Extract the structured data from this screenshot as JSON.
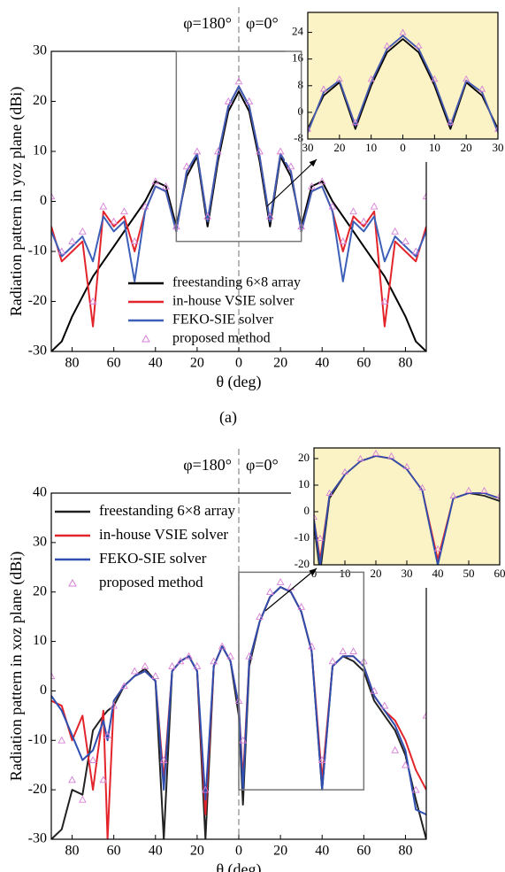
{
  "chart_data": [
    {
      "type": "line",
      "caption": "(a)",
      "xlabel": "θ (deg)",
      "ylabel": "Radiation pattern in yoz plane (dBi)",
      "annotations": [
        "φ=180°",
        "φ=0°"
      ],
      "legend": "lower center",
      "grid": false,
      "xlim": [
        -90,
        90
      ],
      "ylim": [
        -30,
        30
      ],
      "xticks": [
        {
          "value": -80,
          "label": "80"
        },
        {
          "value": -60,
          "label": "60"
        },
        {
          "value": -40,
          "label": "40"
        },
        {
          "value": -20,
          "label": "20"
        },
        0,
        20,
        40,
        60,
        80
      ],
      "yticks": [
        -30,
        -20,
        -10,
        0,
        10,
        20,
        30
      ],
      "x": [
        -90,
        -85,
        -80,
        -75,
        -70,
        -65,
        -60,
        -55,
        -50,
        -45,
        -40,
        -35,
        -30,
        -25,
        -20,
        -15,
        -10,
        -5,
        0,
        5,
        10,
        15,
        20,
        25,
        30,
        35,
        40,
        45,
        50,
        55,
        60,
        65,
        70,
        75,
        80,
        85,
        90
      ],
      "series": [
        {
          "name": "freestanding 6×8 array",
          "color": "#000000",
          "values": [
            -30,
            -28,
            -23,
            -19,
            -15,
            -12,
            -9,
            -6,
            -3,
            0,
            4,
            3,
            -5,
            5,
            9,
            -5,
            8,
            18,
            22,
            18,
            8,
            -5,
            9,
            5,
            -5,
            3,
            4,
            0,
            -3,
            -6,
            -9,
            -12,
            -15,
            -19,
            -23,
            -28,
            -30
          ]
        },
        {
          "name": "in-house VSIE solver",
          "color": "#e3242b",
          "values": [
            -5,
            -12,
            -10,
            -8,
            -25,
            -2,
            -5,
            -3,
            -10,
            -2,
            3,
            2,
            -6,
            6,
            9.5,
            -4,
            9,
            19,
            23,
            19,
            9,
            -4,
            9.5,
            6,
            -6,
            2,
            3,
            -2,
            -10,
            -3,
            -5,
            -2,
            -25,
            -8,
            -10,
            -12,
            -5
          ]
        },
        {
          "name": "FEKO-SIE solver",
          "color": "#3c5fb8",
          "values": [
            -6,
            -11,
            -9,
            -7,
            -12,
            -3,
            -6,
            -4,
            -16,
            -2,
            3,
            2,
            -6,
            6,
            9.5,
            -4,
            9,
            19,
            23,
            19,
            9,
            -4,
            9.5,
            6,
            -6,
            2,
            3,
            -2,
            -16,
            -4,
            -6,
            -3,
            -12,
            -7,
            -9,
            -11,
            -6
          ]
        },
        {
          "name": "proposed method",
          "color": "#d77fd7",
          "marker": "triangle",
          "values": [
            1,
            -10,
            -8,
            -6,
            -20,
            -1,
            -4,
            -2,
            -8,
            -1,
            4,
            3,
            -5,
            7,
            10,
            -3,
            10,
            20,
            24,
            20,
            10,
            -3,
            10,
            7,
            -5,
            3,
            4,
            -1,
            -8,
            -2,
            -4,
            -1,
            -20,
            -6,
            -8,
            -10,
            1
          ]
        }
      ]
    },
    {
      "type": "line",
      "background": "#fbf3c6",
      "grid": false,
      "xlim": [
        -30,
        30
      ],
      "ylim": [
        -8,
        30
      ],
      "xticks": [
        {
          "value": -30,
          "label": "30"
        },
        {
          "value": -20,
          "label": "20"
        },
        {
          "value": -10,
          "label": "10"
        },
        0,
        10,
        20,
        30
      ],
      "yticks": [
        -8,
        0,
        8,
        16,
        24
      ],
      "x": [
        -30,
        -25,
        -20,
        -15,
        -10,
        -5,
        0,
        5,
        10,
        15,
        20,
        25,
        30
      ],
      "series": [
        {
          "color": "#000000",
          "values": [
            -5,
            5,
            9,
            -5,
            8,
            18,
            22,
            18,
            8,
            -5,
            9,
            5,
            -5
          ]
        },
        {
          "color": "#e3242b",
          "values": [
            -6,
            6,
            9.5,
            -4,
            9,
            19,
            23,
            19,
            9,
            -4,
            9.5,
            6,
            -6
          ]
        },
        {
          "color": "#3c5fb8",
          "values": [
            -6,
            6,
            9.5,
            -4,
            9,
            19,
            23,
            19,
            9,
            -4,
            9.5,
            6,
            -6
          ]
        },
        {
          "color": "#d77fd7",
          "marker": "triangle",
          "values": [
            -5,
            7,
            10,
            -3,
            10,
            20,
            24,
            20,
            10,
            -3,
            10,
            7,
            -5
          ]
        }
      ]
    },
    {
      "type": "line",
      "caption": "(b)",
      "xlabel": "θ (deg)",
      "ylabel": "Radiation pattern in xoz plane (dBi)",
      "annotations": [
        "φ=180°",
        "φ=0°"
      ],
      "legend": "upper left",
      "grid": false,
      "xlim": [
        -90,
        90
      ],
      "ylim": [
        -30,
        40
      ],
      "xticks": [
        {
          "value": -80,
          "label": "80"
        },
        {
          "value": -60,
          "label": "60"
        },
        {
          "value": -40,
          "label": "40"
        },
        {
          "value": -20,
          "label": "20"
        },
        0,
        20,
        40,
        60,
        80
      ],
      "yticks": [
        -30,
        -20,
        -10,
        0,
        10,
        20,
        30,
        40
      ],
      "x": [
        -90,
        -85,
        -80,
        -75,
        -70,
        -65,
        -63,
        -60,
        -55,
        -50,
        -45,
        -40,
        -36,
        -32,
        -28,
        -24,
        -20,
        -16,
        -12,
        -8,
        -4,
        0,
        2,
        5,
        10,
        15,
        20,
        25,
        30,
        35,
        40,
        45,
        50,
        55,
        60,
        65,
        70,
        75,
        80,
        85,
        90
      ],
      "series": [
        {
          "name": "freestanding 6×8 array",
          "color": "#222222",
          "values": [
            -30,
            -28,
            -20,
            -21,
            -8,
            -5,
            -4,
            -3,
            1,
            3,
            4.5,
            2,
            -30,
            4,
            6,
            7,
            4,
            -30,
            5,
            9,
            6,
            -5,
            -23,
            5,
            14,
            19,
            21,
            20,
            16,
            8,
            -20,
            5,
            7,
            6,
            4,
            -2,
            -5,
            -8,
            -13,
            -22,
            -30
          ]
        },
        {
          "name": "in-house VSIE solver",
          "color": "#e3242b",
          "values": [
            -2,
            -3,
            -10,
            -5,
            -20,
            -4,
            -30,
            -2,
            1,
            3,
            4,
            2,
            -18,
            4,
            6,
            7,
            4,
            -25,
            5,
            9,
            6,
            -3,
            -18,
            6,
            14,
            19,
            21,
            20,
            16,
            8,
            -18,
            5,
            7,
            7,
            5,
            -1,
            -4,
            -6,
            -10,
            -16,
            -20
          ]
        },
        {
          "name": "FEKO-SIE solver",
          "color": "#2f4fb0",
          "values": [
            -1,
            -4,
            -9,
            -14,
            -12,
            -6,
            -10,
            -2,
            1,
            3,
            4,
            2,
            -20,
            4,
            6,
            7,
            4,
            -22,
            5,
            9,
            6,
            -3,
            -20,
            6,
            14,
            19,
            21,
            20,
            16,
            8,
            -20,
            5,
            7,
            7,
            5,
            -1,
            -4,
            -7,
            -12,
            -24,
            -25
          ]
        },
        {
          "name": "proposed method",
          "color": "#d77fd7",
          "marker": "triangle",
          "values": [
            3,
            -10,
            -18,
            -22,
            -14,
            -18,
            -9,
            -3,
            1,
            4,
            5,
            3,
            -14,
            5,
            6,
            7,
            5,
            -20,
            6,
            9,
            7,
            -2,
            -10,
            7,
            15,
            20,
            22,
            21,
            17,
            9,
            -14,
            6,
            8,
            8,
            6,
            0,
            -3,
            -12,
            -15,
            -20,
            -5
          ]
        }
      ]
    },
    {
      "type": "line",
      "background": "#fbf3c6",
      "grid": false,
      "xlim": [
        0,
        60
      ],
      "ylim": [
        -20,
        24
      ],
      "xticks": [
        0,
        10,
        20,
        30,
        40,
        50,
        60
      ],
      "yticks": [
        -20,
        -10,
        0,
        10,
        20
      ],
      "x": [
        0,
        2,
        5,
        10,
        15,
        20,
        25,
        30,
        35,
        40,
        45,
        50,
        55,
        60
      ],
      "series": [
        {
          "color": "#222222",
          "values": [
            -5,
            -23,
            5,
            14,
            19,
            21,
            20,
            16,
            8,
            -20,
            5,
            7,
            6,
            4
          ]
        },
        {
          "color": "#e3242b",
          "values": [
            -3,
            -18,
            6,
            14,
            19,
            21,
            20,
            16,
            8,
            -18,
            5,
            7,
            7,
            5
          ]
        },
        {
          "color": "#2f4fb0",
          "values": [
            -3,
            -20,
            6,
            14,
            19,
            21,
            20,
            16,
            8,
            -20,
            5,
            7,
            7,
            5
          ]
        },
        {
          "color": "#d77fd7",
          "marker": "triangle",
          "values": [
            -2,
            -10,
            7,
            15,
            20,
            22,
            21,
            17,
            9,
            -14,
            6,
            8,
            8,
            6
          ]
        }
      ]
    }
  ]
}
